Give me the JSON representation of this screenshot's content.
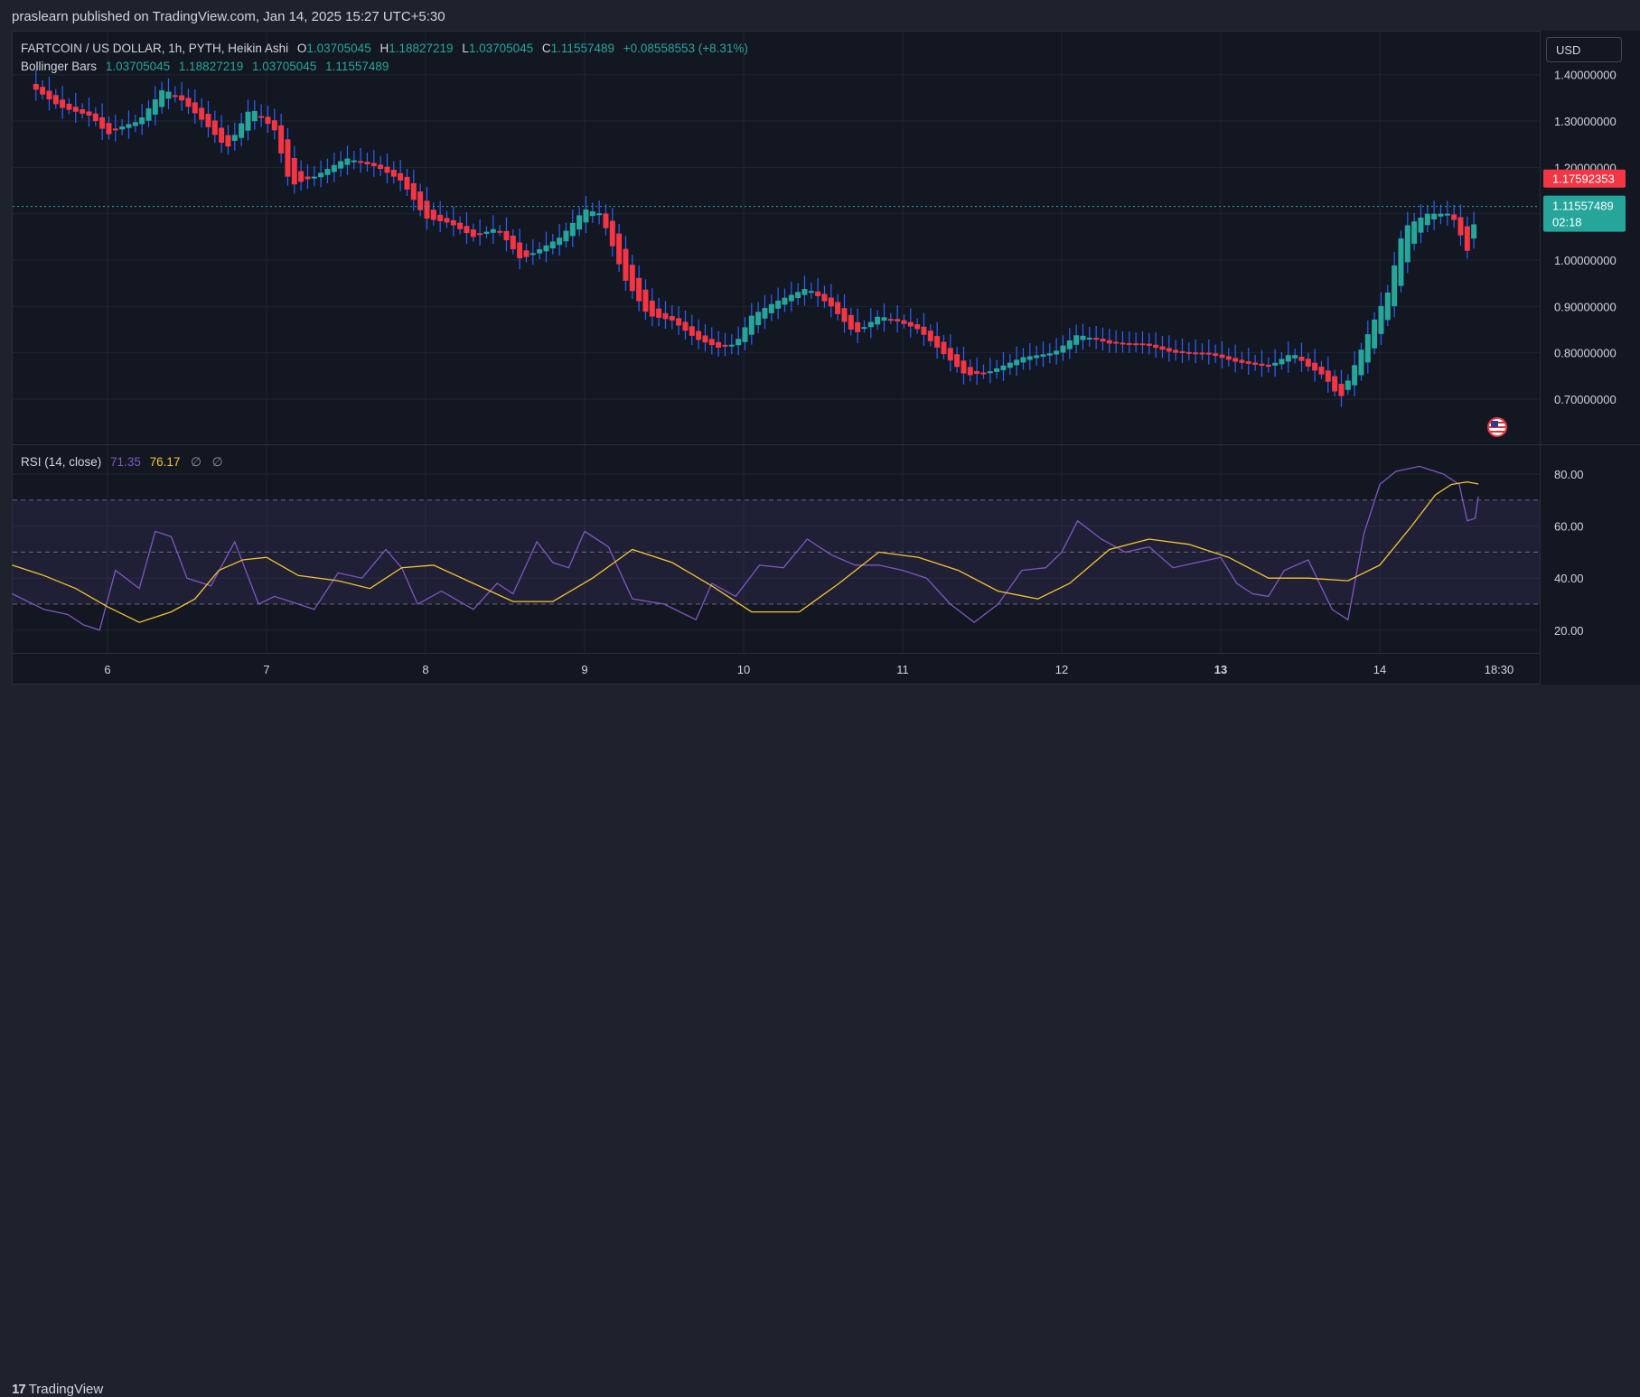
{
  "publisher": "praslearn published on TradingView.com, Jan 14, 2025 15:27 UTC+5:30",
  "legend": {
    "symbol": "FARTCOIN / US DOLLAR, 1h, PYTH, Heikin Ashi",
    "o_label": "O",
    "o": "1.03705045",
    "h_label": "H",
    "h": "1.18827219",
    "l_label": "L",
    "l": "1.03705045",
    "c_label": "C",
    "c": "1.11557489",
    "change": "+0.08558553 (+8.31%)",
    "bb_label": "Bollinger Bars",
    "bb_values": [
      "1.03705045",
      "1.18827219",
      "1.03705045",
      "1.11557489"
    ],
    "rsi_label": "RSI (14, close)",
    "rsi_value": "71.35",
    "rsi_ma_value": "76.17",
    "na_1": "∅",
    "na_2": "∅"
  },
  "currency": "USD",
  "price_axis": [
    "1.40000000",
    "1.30000000",
    "1.20000000",
    "1.00000000",
    "0.90000000",
    "0.80000000",
    "0.70000000"
  ],
  "rsi_axis": [
    "80.00",
    "60.00",
    "40.00",
    "20.00"
  ],
  "price_tags": {
    "high_tag": "1.17592353",
    "last_price": "1.11557489",
    "countdown": "02:18"
  },
  "time_axis": [
    "6",
    "7",
    "8",
    "9",
    "10",
    "11",
    "12",
    "13",
    "14",
    "18:30"
  ],
  "brand": "TradingView",
  "icons": {
    "logo": "tradingview-logo-icon",
    "flag": "us-flag-icon"
  },
  "colors": {
    "up": "#26a69a",
    "down": "#f23645",
    "wick": "#2962ff",
    "rsi": "#7e57c2",
    "rsi_ma": "#f5c531",
    "tag_red": "#f23645",
    "tag_green": "#26a69a"
  },
  "chart_data": [
    {
      "type": "candlestick",
      "candle_style": "Heikin Ashi",
      "x": [
        5.5,
        5.7,
        5.9,
        6.0,
        6.1,
        6.2,
        6.35,
        6.45,
        6.6,
        6.75,
        6.9,
        7.05,
        7.15,
        7.3,
        7.5,
        7.7,
        7.85,
        8.0,
        8.15,
        8.3,
        8.45,
        8.6,
        8.75,
        8.85,
        9.0,
        9.1,
        9.25,
        9.4,
        9.55,
        9.7,
        9.85,
        9.95,
        10.05,
        10.2,
        10.4,
        10.55,
        10.7,
        10.85,
        10.95,
        11.1,
        11.25,
        11.4,
        11.55,
        11.75,
        11.95,
        12.1,
        12.3,
        12.5,
        12.7,
        12.9,
        13.1,
        13.3,
        13.45,
        13.55,
        13.65,
        13.75,
        13.85,
        13.95,
        14.05,
        14.15,
        14.3,
        14.45,
        14.55,
        14.62
      ],
      "values": [
        1.38,
        1.33,
        1.31,
        1.27,
        1.29,
        1.3,
        1.37,
        1.35,
        1.3,
        1.24,
        1.33,
        1.28,
        1.16,
        1.18,
        1.22,
        1.2,
        1.17,
        1.09,
        1.08,
        1.05,
        1.07,
        1.0,
        1.03,
        1.05,
        1.11,
        1.1,
        0.96,
        0.88,
        0.87,
        0.83,
        0.81,
        0.82,
        0.88,
        0.91,
        0.94,
        0.9,
        0.84,
        0.88,
        0.87,
        0.85,
        0.8,
        0.75,
        0.76,
        0.79,
        0.8,
        0.84,
        0.82,
        0.82,
        0.8,
        0.8,
        0.78,
        0.77,
        0.8,
        0.77,
        0.75,
        0.7,
        0.78,
        0.86,
        0.93,
        1.07,
        1.1,
        1.1,
        1.02,
        1.116
      ],
      "ylim": [
        0.62,
        1.45
      ]
    },
    {
      "type": "line",
      "series": [
        {
          "name": "RSI (14, close)",
          "x": [
            5.4,
            5.6,
            5.75,
            5.85,
            5.95,
            6.05,
            6.2,
            6.3,
            6.4,
            6.5,
            6.65,
            6.8,
            6.95,
            7.05,
            7.15,
            7.3,
            7.45,
            7.6,
            7.75,
            7.85,
            7.95,
            8.1,
            8.3,
            8.45,
            8.55,
            8.7,
            8.8,
            8.9,
            9.0,
            9.15,
            9.3,
            9.5,
            9.7,
            9.8,
            9.95,
            10.1,
            10.25,
            10.4,
            10.55,
            10.7,
            10.85,
            11.0,
            11.15,
            11.3,
            11.45,
            11.6,
            11.75,
            11.9,
            12.0,
            12.1,
            12.25,
            12.4,
            12.55,
            12.7,
            12.85,
            13.0,
            13.1,
            13.2,
            13.3,
            13.4,
            13.55,
            13.7,
            13.8,
            13.9,
            14.0,
            14.1,
            14.25,
            14.4,
            14.5,
            14.55,
            14.6,
            14.62
          ],
          "values": [
            34,
            28,
            26,
            22,
            20,
            43,
            36,
            58,
            56,
            40,
            37,
            54,
            30,
            33,
            31,
            28,
            42,
            40,
            51,
            44,
            30,
            35,
            28,
            38,
            34,
            54,
            46,
            44,
            58,
            52,
            32,
            30,
            24,
            38,
            33,
            45,
            44,
            55,
            49,
            45,
            45,
            43,
            40,
            30,
            23,
            30,
            43,
            44,
            50,
            62,
            55,
            50,
            52,
            44,
            46,
            48,
            38,
            34,
            33,
            43,
            47,
            28,
            24,
            57,
            76,
            81,
            83,
            80,
            76,
            62,
            63,
            71.35
          ],
          "color": "#7e57c2"
        },
        {
          "name": "RSI-based MA",
          "x": [
            5.4,
            5.6,
            5.8,
            6.0,
            6.2,
            6.4,
            6.55,
            6.7,
            6.85,
            7.0,
            7.2,
            7.45,
            7.65,
            7.85,
            8.05,
            8.3,
            8.55,
            8.8,
            9.05,
            9.3,
            9.55,
            9.8,
            10.05,
            10.35,
            10.6,
            10.85,
            11.1,
            11.35,
            11.6,
            11.85,
            12.05,
            12.3,
            12.55,
            12.8,
            13.05,
            13.3,
            13.55,
            13.8,
            14.0,
            14.2,
            14.35,
            14.45,
            14.55,
            14.62
          ],
          "values": [
            45,
            41,
            36,
            29,
            23,
            27,
            32,
            43,
            47,
            48,
            41,
            39,
            36,
            44,
            45,
            38,
            31,
            31,
            40,
            51,
            46,
            37,
            27,
            27,
            38,
            50,
            48,
            43,
            35,
            32,
            38,
            51,
            55,
            53,
            48,
            40,
            40,
            39,
            45,
            60,
            72,
            76,
            77,
            76.17
          ],
          "color": "#f5c531"
        }
      ],
      "ylim": [
        12,
        92
      ],
      "levels": [
        70,
        50,
        30
      ]
    }
  ]
}
